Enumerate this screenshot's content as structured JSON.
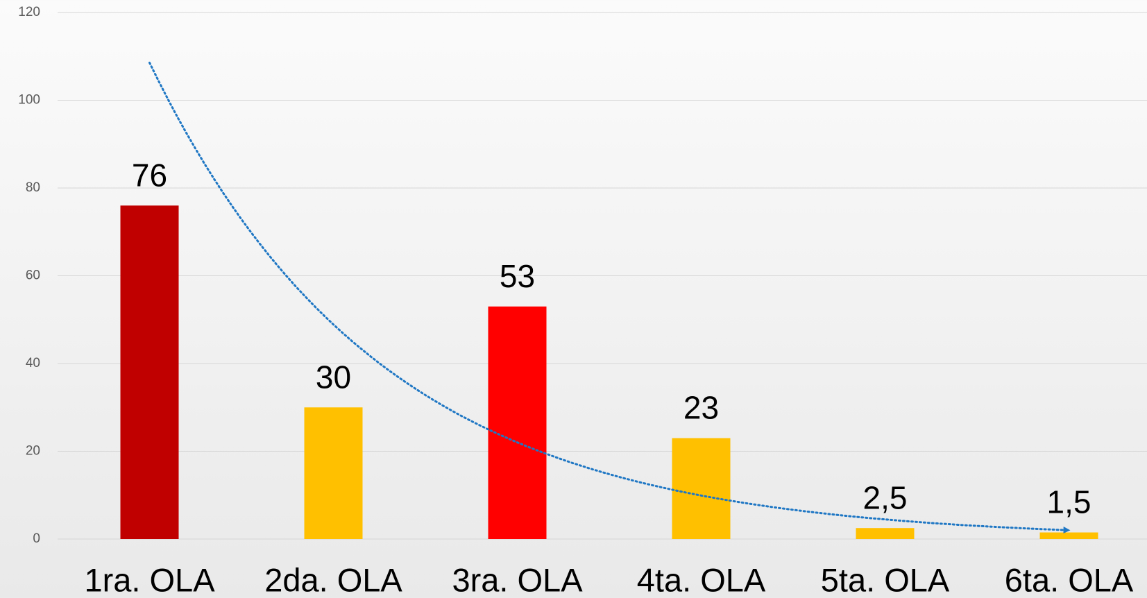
{
  "chart_data": {
    "type": "bar",
    "categories": [
      "1ra. OLA",
      "2da. OLA",
      "3ra. OLA",
      "4ta. OLA",
      "5ta. OLA",
      "6ta. OLA"
    ],
    "values": [
      76,
      30,
      53,
      23,
      2.5,
      1.5
    ],
    "value_labels": [
      "76",
      "30",
      "53",
      "23",
      "2,5",
      "1,5"
    ],
    "colors": [
      "#c00000",
      "#ffc000",
      "#ff0000",
      "#ffc000",
      "#ffc000",
      "#ffc000"
    ],
    "trendline": {
      "type": "exponential",
      "color": "#1f77c4"
    },
    "ylim": [
      0,
      120
    ],
    "yticks": [
      0,
      20,
      40,
      60,
      80,
      100,
      120
    ],
    "grid": true
  }
}
